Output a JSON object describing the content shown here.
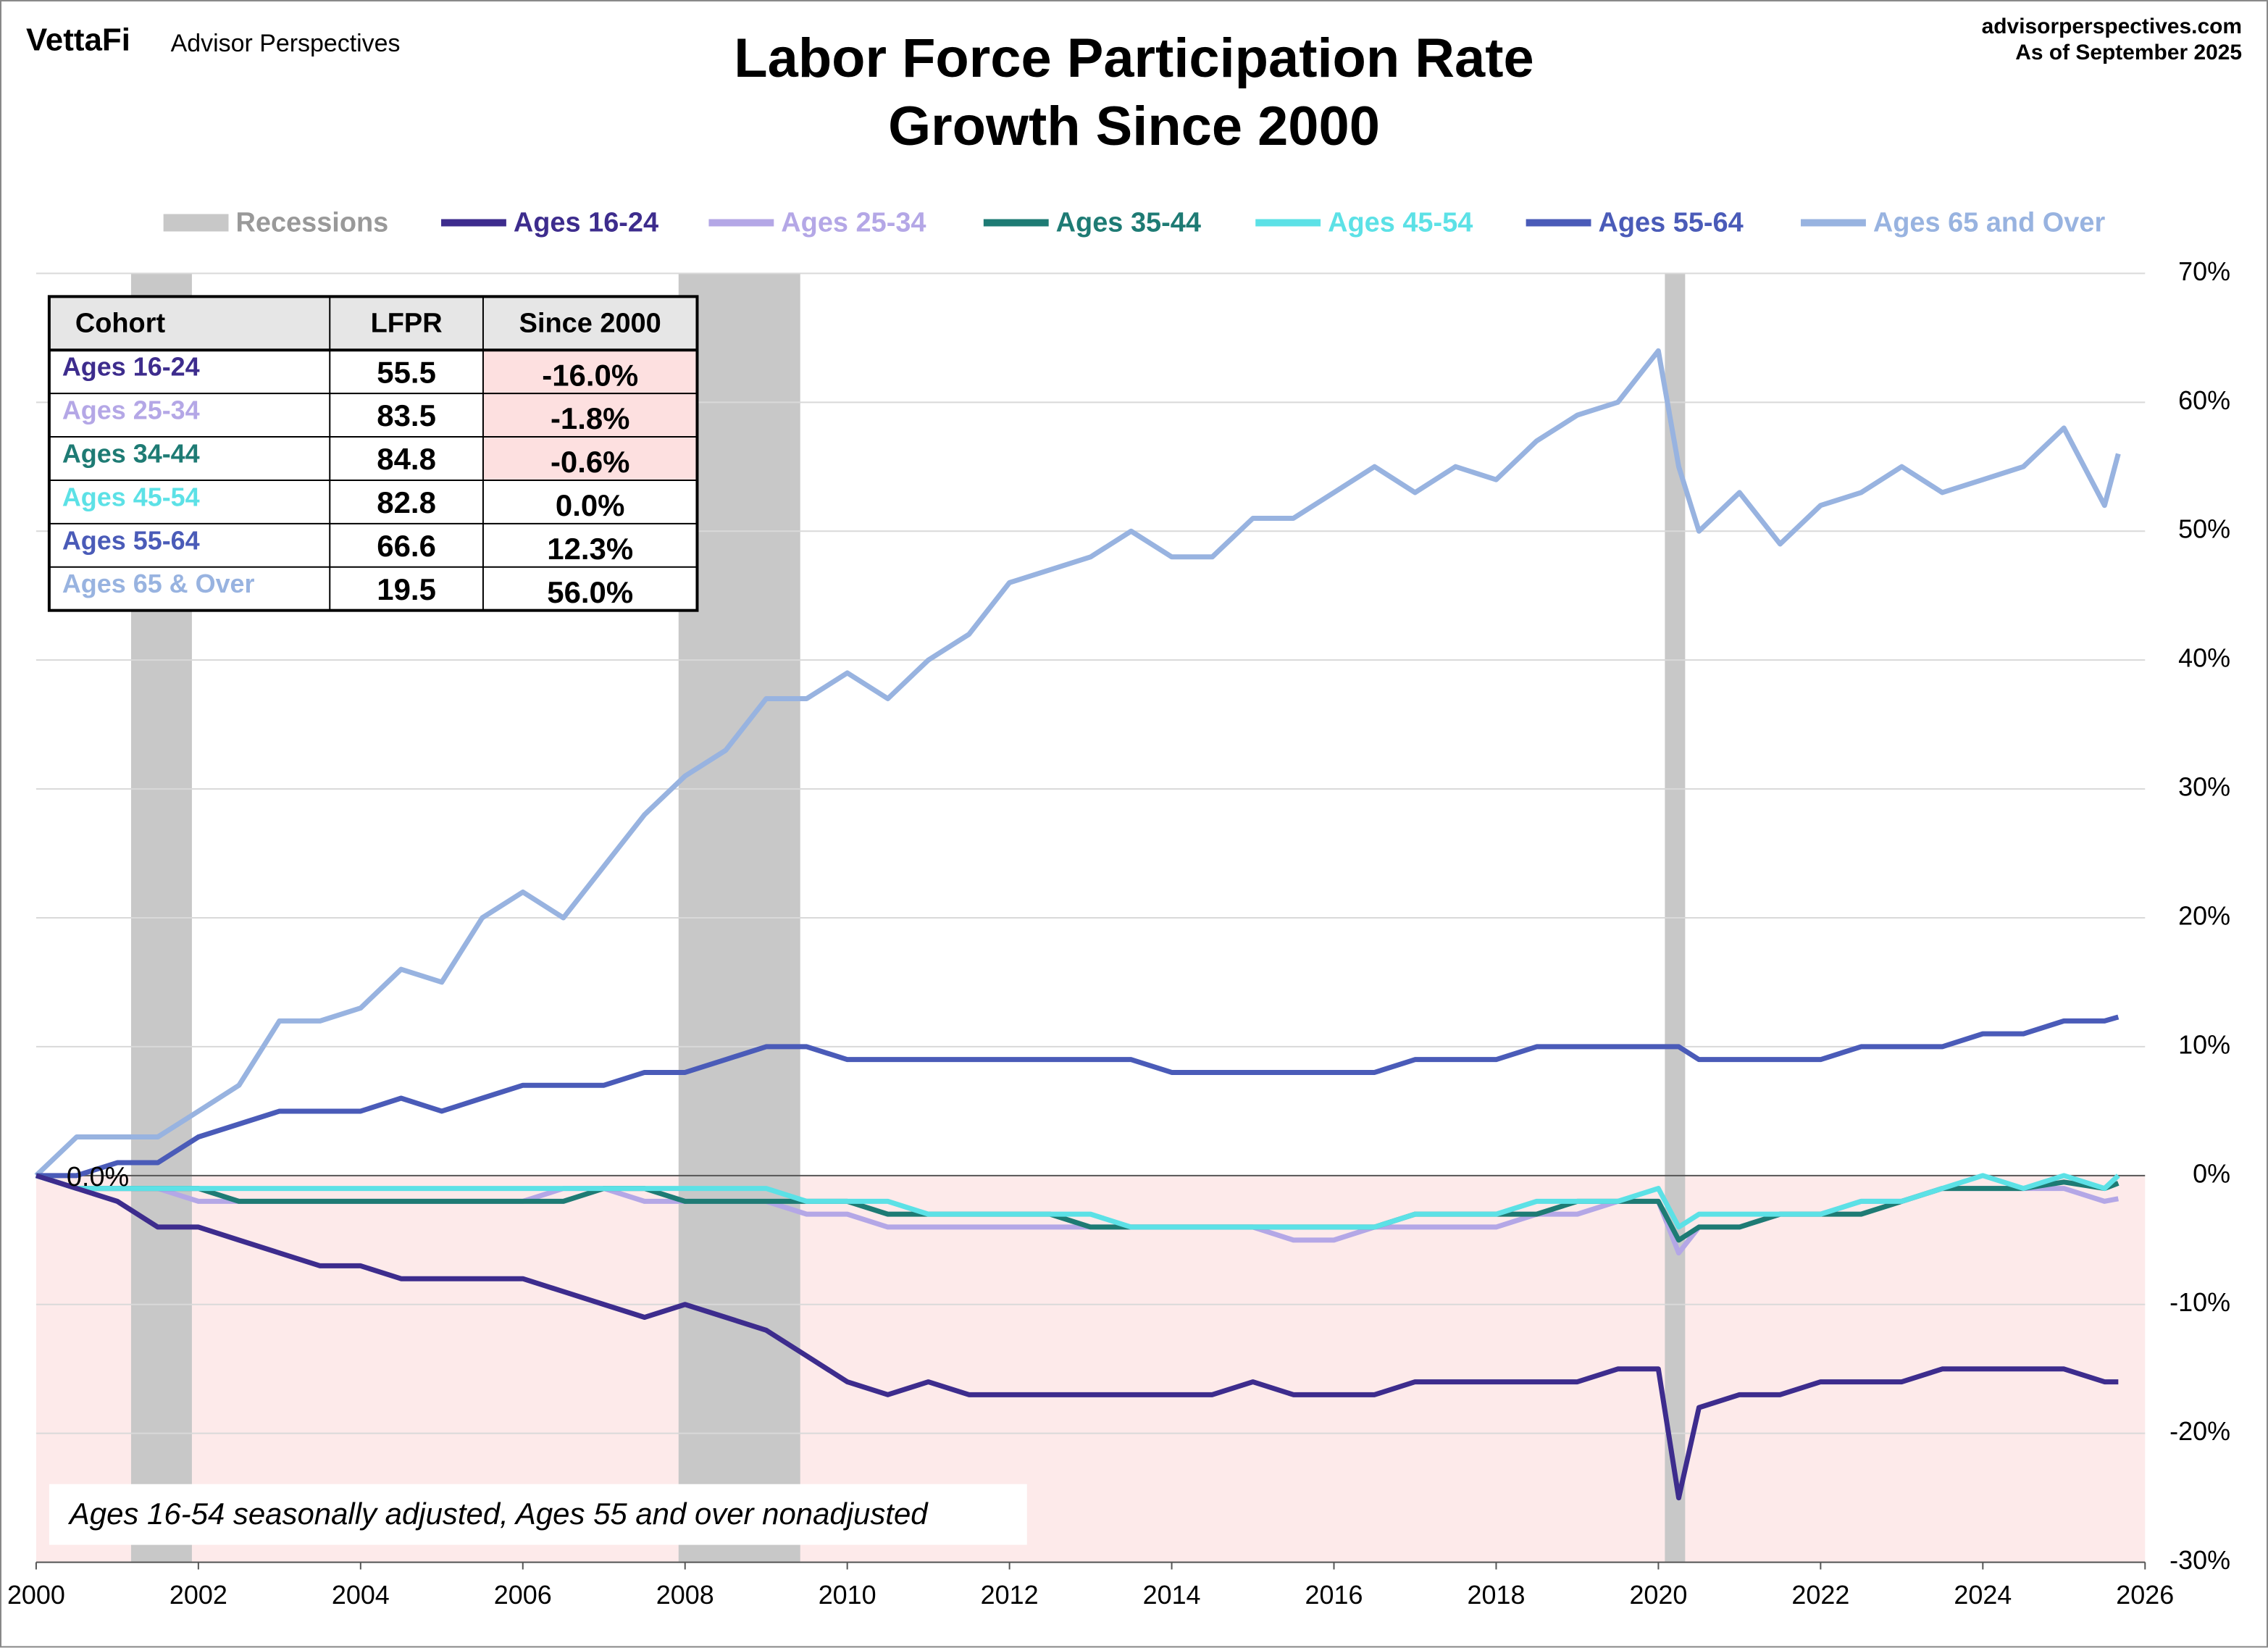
{
  "chart_data": {
    "type": "line",
    "brand": "VettaFi",
    "brand_sub": "Advisor Perspectives",
    "source": "advisorperspectives.com",
    "as_of": "As of September 2025",
    "title": [
      "Labor Force Participation Rate",
      "Growth Since 2000"
    ],
    "recession_label": "Recessions",
    "recessions": [
      [
        2001.17,
        2001.92
      ],
      [
        2007.92,
        2009.42
      ],
      [
        2020.08,
        2020.33
      ]
    ],
    "recession_color": "#c8c8c8",
    "negative_shade": "#fdeaea",
    "annotation": "0.0%",
    "footnote": "Ages 16-54 seasonally adjusted, Ages 55 and over nonadjusted",
    "x": [
      2000,
      2000.5,
      2001,
      2001.5,
      2002,
      2002.5,
      2003,
      2003.5,
      2004,
      2004.5,
      2005,
      2005.5,
      2006,
      2006.5,
      2007,
      2007.5,
      2008,
      2008.5,
      2009,
      2009.5,
      2010,
      2010.5,
      2011,
      2011.5,
      2012,
      2012.5,
      2013,
      2013.5,
      2014,
      2014.5,
      2015,
      2015.5,
      2016,
      2016.5,
      2017,
      2017.5,
      2018,
      2018.5,
      2019,
      2019.5,
      2020,
      2020.25,
      2020.5,
      2021,
      2021.5,
      2022,
      2022.5,
      2023,
      2023.5,
      2024,
      2024.5,
      2025,
      2025.5,
      2025.67
    ],
    "series": [
      {
        "name": "Ages 16-24",
        "color": "#3d2c8d",
        "values": [
          0,
          -1,
          -2,
          -4,
          -4,
          -5,
          -6,
          -7,
          -7,
          -8,
          -8,
          -8,
          -8,
          -9,
          -10,
          -11,
          -10,
          -11,
          -12,
          -14,
          -16,
          -17,
          -16,
          -17,
          -17,
          -17,
          -17,
          -17,
          -17,
          -17,
          -16,
          -17,
          -17,
          -17,
          -16,
          -16,
          -16,
          -16,
          -16,
          -15,
          -15,
          -25,
          -18,
          -17,
          -17,
          -16,
          -16,
          -16,
          -15,
          -15,
          -15,
          -15,
          -16,
          -16
        ]
      },
      {
        "name": "Ages 25-34",
        "color": "#b4a7e6",
        "values": [
          0,
          -1,
          -1,
          -1,
          -2,
          -2,
          -2,
          -2,
          -2,
          -2,
          -2,
          -2,
          -2,
          -1,
          -1,
          -2,
          -2,
          -2,
          -2,
          -3,
          -3,
          -4,
          -4,
          -4,
          -4,
          -4,
          -4,
          -4,
          -4,
          -4,
          -4,
          -5,
          -5,
          -4,
          -4,
          -4,
          -4,
          -3,
          -3,
          -2,
          -2,
          -6,
          -4,
          -4,
          -3,
          -3,
          -2,
          -2,
          -1,
          -1,
          -1,
          -1,
          -2,
          -1.8
        ]
      },
      {
        "name": "Ages 35-44",
        "color": "#1e7b74",
        "values": [
          0,
          -1,
          -1,
          -1,
          -1,
          -2,
          -2,
          -2,
          -2,
          -2,
          -2,
          -2,
          -2,
          -2,
          -1,
          -1,
          -2,
          -2,
          -2,
          -2,
          -2,
          -3,
          -3,
          -3,
          -3,
          -3,
          -4,
          -4,
          -4,
          -4,
          -4,
          -4,
          -4,
          -4,
          -3,
          -3,
          -3,
          -3,
          -2,
          -2,
          -2,
          -5,
          -4,
          -4,
          -3,
          -3,
          -3,
          -2,
          -1,
          -1,
          -1,
          -0.5,
          -1,
          -0.6
        ]
      },
      {
        "name": "Ages 45-54",
        "color": "#5ce1e6",
        "values": [
          0,
          -1,
          -1,
          -1,
          -1,
          -1,
          -1,
          -1,
          -1,
          -1,
          -1,
          -1,
          -1,
          -1,
          -1,
          -1,
          -1,
          -1,
          -1,
          -2,
          -2,
          -2,
          -3,
          -3,
          -3,
          -3,
          -3,
          -4,
          -4,
          -4,
          -4,
          -4,
          -4,
          -4,
          -3,
          -3,
          -3,
          -2,
          -2,
          -2,
          -1,
          -4,
          -3,
          -3,
          -3,
          -3,
          -2,
          -2,
          -1,
          0,
          -1,
          0,
          -1,
          0
        ]
      },
      {
        "name": "Ages 55-64",
        "color": "#4a5bb8",
        "values": [
          0,
          0,
          1,
          1,
          3,
          4,
          5,
          5,
          5,
          6,
          5,
          6,
          7,
          7,
          7,
          8,
          8,
          9,
          10,
          10,
          9,
          9,
          9,
          9,
          9,
          9,
          9,
          9,
          8,
          8,
          8,
          8,
          8,
          8,
          9,
          9,
          9,
          10,
          10,
          10,
          10,
          10,
          9,
          9,
          9,
          9,
          10,
          10,
          10,
          11,
          11,
          12,
          12,
          12.3
        ]
      },
      {
        "name": "Ages 65 and Over",
        "color": "#98b3e0",
        "values": [
          0,
          3,
          3,
          3,
          5,
          7,
          12,
          12,
          13,
          16,
          15,
          20,
          22,
          20,
          24,
          28,
          31,
          33,
          37,
          37,
          39,
          37,
          40,
          42,
          46,
          47,
          48,
          50,
          48,
          48,
          51,
          51,
          53,
          55,
          53,
          55,
          54,
          57,
          59,
          60,
          64,
          55,
          50,
          53,
          49,
          52,
          53,
          55,
          53,
          54,
          55,
          58,
          52,
          56
        ]
      }
    ],
    "xlim": [
      2000,
      2026
    ],
    "xticks": [
      2000,
      2002,
      2004,
      2006,
      2008,
      2010,
      2012,
      2014,
      2016,
      2018,
      2020,
      2022,
      2024,
      2026
    ],
    "ylim": [
      -30,
      70
    ],
    "yticks": [
      {
        "value": -30,
        "label": "-30%"
      },
      {
        "value": -20,
        "label": "-20%"
      },
      {
        "value": -10,
        "label": "-10%"
      },
      {
        "value": 0,
        "label": "0%"
      },
      {
        "value": 10,
        "label": "10%"
      },
      {
        "value": 20,
        "label": "20%"
      },
      {
        "value": 30,
        "label": "30%"
      },
      {
        "value": 40,
        "label": "40%"
      },
      {
        "value": 50,
        "label": "50%"
      },
      {
        "value": 60,
        "label": "60%"
      },
      {
        "value": 70,
        "label": "70%"
      }
    ],
    "grid": true,
    "table": {
      "columns": [
        "Cohort",
        "LFPR",
        "Since 2000"
      ],
      "rows": [
        [
          "Ages 16-24",
          "55.5",
          "-16.0%"
        ],
        [
          "Ages 25-34",
          "83.5",
          "-1.8%"
        ],
        [
          "Ages 34-44",
          "84.8",
          "-0.6%"
        ],
        [
          "Ages 45-54",
          "82.8",
          "0.0%"
        ],
        [
          "Ages 55-64",
          "66.6",
          "12.3%"
        ],
        [
          "Ages 65 & Over",
          "19.5",
          "56.0%"
        ]
      ]
    }
  }
}
